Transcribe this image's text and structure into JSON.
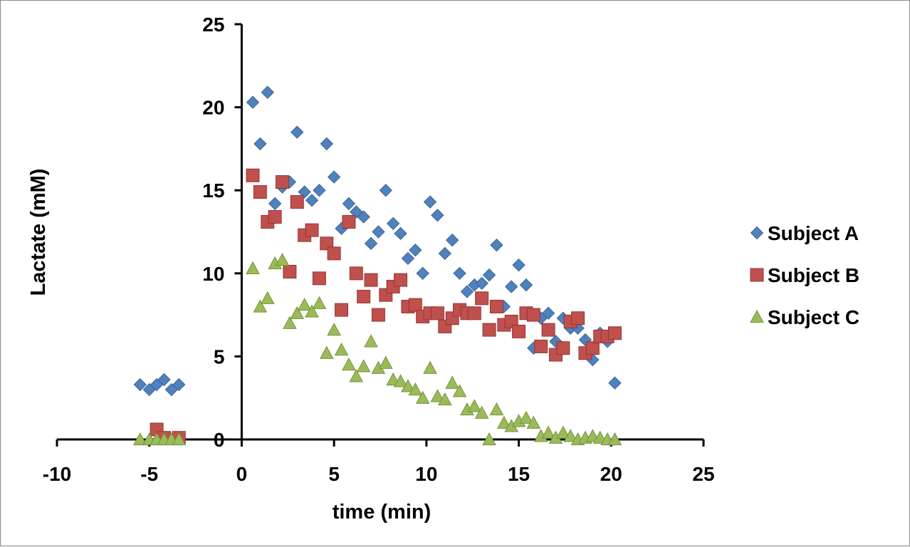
{
  "chart_data": {
    "type": "scatter",
    "title": "",
    "xlabel": "time (min)",
    "ylabel": "Lactate (mM)",
    "xlim": [
      -10,
      25
    ],
    "ylim": [
      0,
      25
    ],
    "xticks": [
      -10,
      -5,
      0,
      5,
      10,
      15,
      20,
      25
    ],
    "yticks": [
      0,
      5,
      10,
      15,
      20,
      25
    ],
    "grid": false,
    "legend_position": "right",
    "series": [
      {
        "name": "Subject A",
        "marker": "diamond",
        "color": "#4F81BD",
        "points": [
          [
            -5.5,
            3.3
          ],
          [
            -5,
            3.0
          ],
          [
            -4.6,
            3.3
          ],
          [
            -4.2,
            3.6
          ],
          [
            -3.8,
            3.0
          ],
          [
            -3.4,
            3.3
          ],
          [
            0.6,
            20.3
          ],
          [
            1.0,
            17.8
          ],
          [
            1.4,
            20.9
          ],
          [
            1.8,
            14.2
          ],
          [
            2.2,
            15.2
          ],
          [
            2.6,
            15.5
          ],
          [
            3.0,
            18.5
          ],
          [
            3.4,
            14.9
          ],
          [
            3.8,
            14.4
          ],
          [
            4.2,
            15.0
          ],
          [
            4.6,
            17.8
          ],
          [
            5.0,
            15.8
          ],
          [
            5.4,
            12.7
          ],
          [
            5.8,
            14.2
          ],
          [
            6.2,
            13.7
          ],
          [
            6.6,
            13.4
          ],
          [
            7.0,
            11.8
          ],
          [
            7.4,
            12.5
          ],
          [
            7.8,
            15.0
          ],
          [
            8.2,
            13.0
          ],
          [
            8.6,
            12.4
          ],
          [
            9.0,
            10.9
          ],
          [
            9.4,
            11.4
          ],
          [
            9.8,
            10.0
          ],
          [
            10.2,
            14.3
          ],
          [
            10.6,
            13.5
          ],
          [
            11.0,
            11.2
          ],
          [
            11.4,
            12.0
          ],
          [
            11.8,
            10.0
          ],
          [
            12.2,
            8.9
          ],
          [
            12.6,
            9.3
          ],
          [
            13.0,
            9.4
          ],
          [
            13.4,
            9.9
          ],
          [
            13.8,
            11.7
          ],
          [
            14.2,
            8.0
          ],
          [
            14.6,
            9.2
          ],
          [
            15.0,
            10.5
          ],
          [
            15.4,
            9.3
          ],
          [
            15.8,
            5.5
          ],
          [
            16.2,
            7.3
          ],
          [
            16.6,
            7.6
          ],
          [
            17.0,
            5.9
          ],
          [
            17.4,
            7.3
          ],
          [
            17.8,
            6.7
          ],
          [
            18.2,
            6.7
          ],
          [
            18.6,
            6.0
          ],
          [
            19.0,
            4.8
          ],
          [
            19.4,
            6.4
          ],
          [
            19.8,
            5.9
          ],
          [
            20.2,
            3.4
          ]
        ]
      },
      {
        "name": "Subject B",
        "marker": "square",
        "color": "#C0504D",
        "points": [
          [
            -4.6,
            0.6
          ],
          [
            -4.2,
            0.1
          ],
          [
            -3.4,
            0.1
          ],
          [
            0.6,
            15.9
          ],
          [
            1.0,
            14.9
          ],
          [
            1.4,
            13.1
          ],
          [
            1.8,
            13.4
          ],
          [
            2.2,
            15.5
          ],
          [
            2.6,
            10.1
          ],
          [
            3.0,
            14.3
          ],
          [
            3.4,
            12.3
          ],
          [
            3.8,
            12.6
          ],
          [
            4.2,
            9.7
          ],
          [
            4.6,
            11.8
          ],
          [
            5.0,
            11.2
          ],
          [
            5.4,
            7.8
          ],
          [
            5.8,
            13.1
          ],
          [
            6.2,
            10.0
          ],
          [
            6.6,
            8.6
          ],
          [
            7.0,
            9.6
          ],
          [
            7.4,
            7.5
          ],
          [
            7.8,
            8.7
          ],
          [
            8.2,
            9.2
          ],
          [
            8.6,
            9.6
          ],
          [
            9.0,
            8.0
          ],
          [
            9.4,
            8.1
          ],
          [
            9.8,
            7.4
          ],
          [
            10.2,
            7.6
          ],
          [
            10.6,
            7.6
          ],
          [
            11.0,
            6.8
          ],
          [
            11.4,
            7.3
          ],
          [
            11.8,
            7.8
          ],
          [
            12.2,
            7.6
          ],
          [
            12.6,
            7.6
          ],
          [
            13.0,
            8.5
          ],
          [
            13.4,
            6.6
          ],
          [
            13.8,
            8.0
          ],
          [
            14.2,
            6.9
          ],
          [
            14.6,
            7.1
          ],
          [
            15.0,
            6.5
          ],
          [
            15.4,
            7.6
          ],
          [
            15.8,
            7.5
          ],
          [
            16.2,
            5.6
          ],
          [
            16.6,
            6.6
          ],
          [
            17.0,
            5.1
          ],
          [
            17.4,
            5.5
          ],
          [
            17.8,
            7.1
          ],
          [
            18.2,
            7.3
          ],
          [
            18.6,
            5.2
          ],
          [
            19.0,
            5.5
          ],
          [
            19.4,
            6.2
          ],
          [
            19.8,
            6.2
          ],
          [
            20.2,
            6.4
          ]
        ]
      },
      {
        "name": "Subject C",
        "marker": "triangle",
        "color": "#9BBB59",
        "points": [
          [
            -5.5,
            0.0
          ],
          [
            -5,
            0.0
          ],
          [
            -4.6,
            0.0
          ],
          [
            -4.2,
            0.0
          ],
          [
            -3.8,
            0.0
          ],
          [
            -3.4,
            0.0
          ],
          [
            0.6,
            10.3
          ],
          [
            1.0,
            8.0
          ],
          [
            1.4,
            8.5
          ],
          [
            1.8,
            10.6
          ],
          [
            2.2,
            10.8
          ],
          [
            2.6,
            7.0
          ],
          [
            3.0,
            7.6
          ],
          [
            3.4,
            8.1
          ],
          [
            3.8,
            7.7
          ],
          [
            4.2,
            8.2
          ],
          [
            4.6,
            5.2
          ],
          [
            5.0,
            6.6
          ],
          [
            5.4,
            5.4
          ],
          [
            5.8,
            4.5
          ],
          [
            6.2,
            3.8
          ],
          [
            6.6,
            4.4
          ],
          [
            7.0,
            5.9
          ],
          [
            7.4,
            4.3
          ],
          [
            7.8,
            4.6
          ],
          [
            8.2,
            3.6
          ],
          [
            8.6,
            3.5
          ],
          [
            9.0,
            3.2
          ],
          [
            9.4,
            3.0
          ],
          [
            9.8,
            2.5
          ],
          [
            10.2,
            4.3
          ],
          [
            10.6,
            2.6
          ],
          [
            11.0,
            2.4
          ],
          [
            11.4,
            3.4
          ],
          [
            11.8,
            2.9
          ],
          [
            12.2,
            1.8
          ],
          [
            12.6,
            2.0
          ],
          [
            13.0,
            1.6
          ],
          [
            13.4,
            0.0
          ],
          [
            13.8,
            1.8
          ],
          [
            14.2,
            1.0
          ],
          [
            14.6,
            0.8
          ],
          [
            15.0,
            1.1
          ],
          [
            15.4,
            1.3
          ],
          [
            15.8,
            1.0
          ],
          [
            16.2,
            0.2
          ],
          [
            16.6,
            0.4
          ],
          [
            17.0,
            0.1
          ],
          [
            17.4,
            0.4
          ],
          [
            17.8,
            0.2
          ],
          [
            18.2,
            0.0
          ],
          [
            18.6,
            0.1
          ],
          [
            19.0,
            0.2
          ],
          [
            19.4,
            0.1
          ],
          [
            19.8,
            0.0
          ],
          [
            20.2,
            0.0
          ]
        ]
      }
    ]
  }
}
